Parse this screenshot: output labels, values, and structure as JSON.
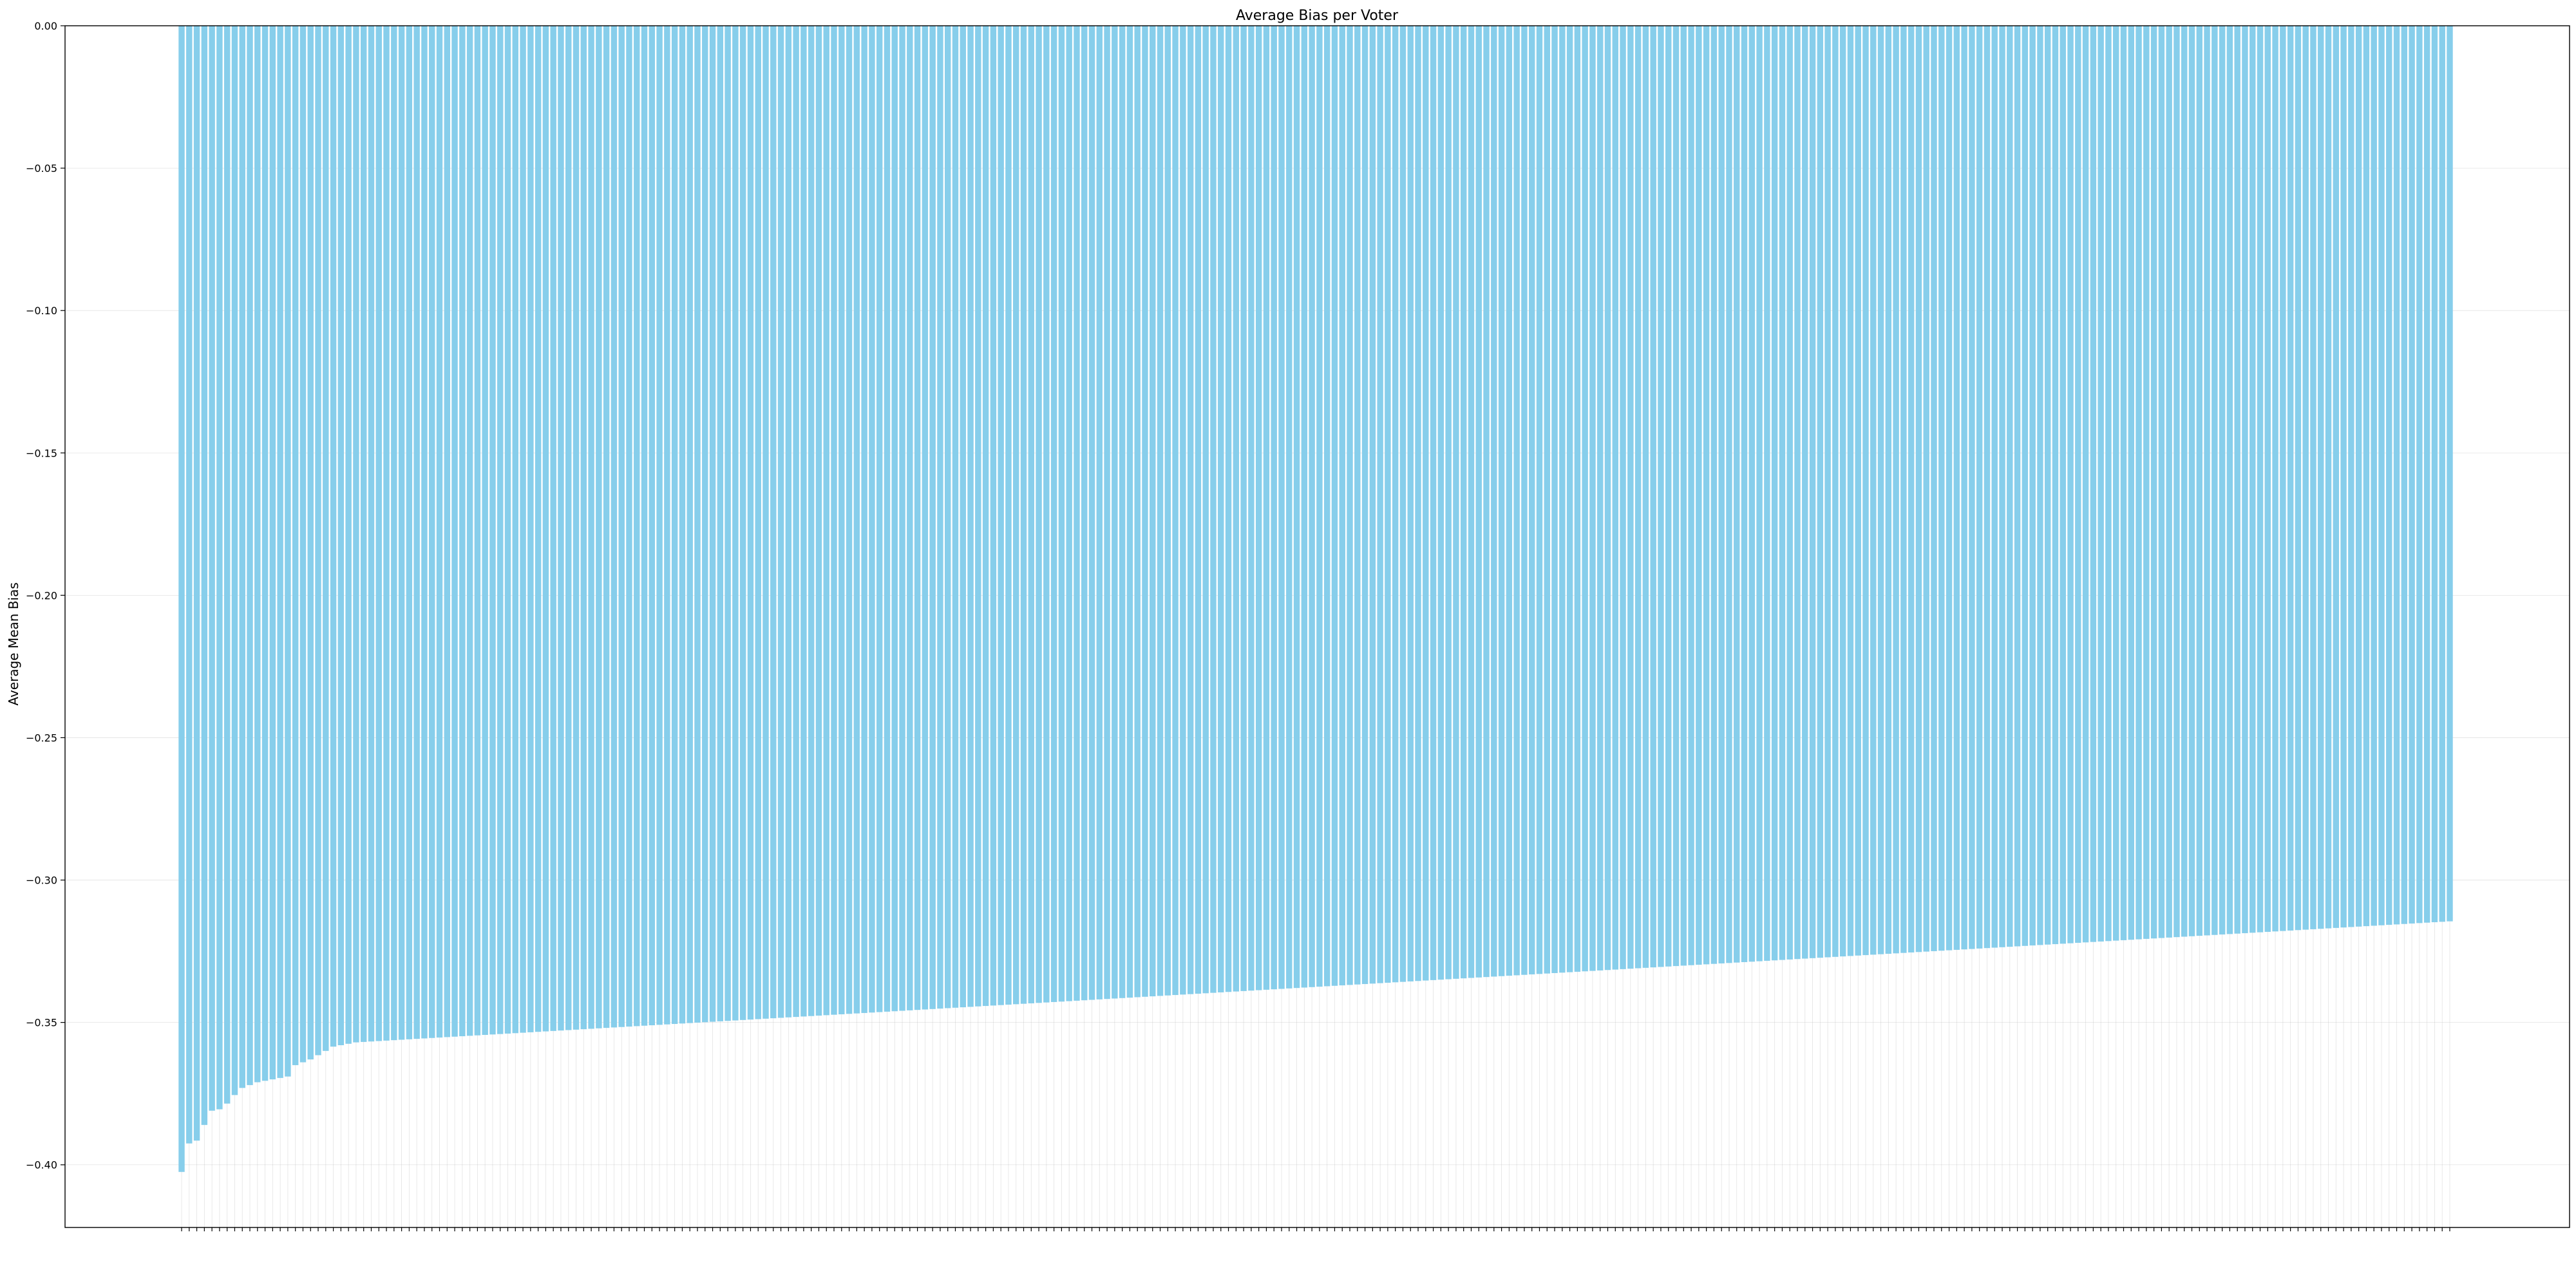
{
  "chart_data": {
    "type": "bar",
    "title": "Average Bias per Voter",
    "xlabel": "",
    "ylabel": "Average Mean Bias",
    "ylim": [
      -0.422,
      0.0
    ],
    "yticks": [
      "0.00",
      "−0.05",
      "−0.10",
      "−0.15",
      "−0.20",
      "−0.25",
      "−0.30",
      "−0.35",
      "−0.40"
    ],
    "ytick_values": [
      0.0,
      -0.05,
      -0.1,
      -0.15,
      -0.2,
      -0.25,
      -0.3,
      -0.35,
      -0.4
    ],
    "grid": true,
    "bar_color": "#87ceeb",
    "sort_order": "ascending",
    "bar_count": 300,
    "value_min": -0.4025,
    "value_max": -0.3145,
    "leading_values": [
      -0.4025,
      -0.3925,
      -0.3915,
      -0.386,
      -0.381,
      -0.3805,
      -0.3785,
      -0.3755,
      -0.373,
      -0.372,
      -0.371,
      -0.3705,
      -0.37,
      -0.3695,
      -0.369,
      -0.365,
      -0.364,
      -0.363,
      -0.3615,
      -0.36,
      -0.3585,
      -0.358,
      -0.3575
    ]
  }
}
